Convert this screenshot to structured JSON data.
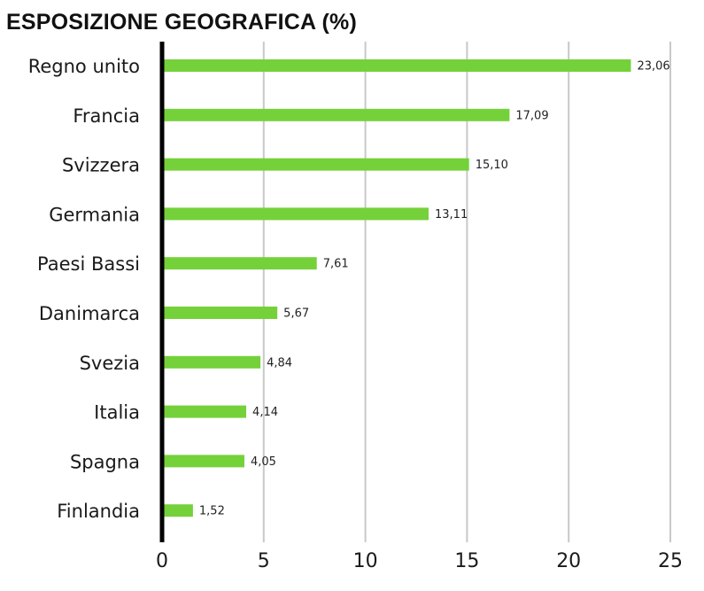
{
  "chart_data": {
    "type": "bar",
    "orientation": "horizontal",
    "title": "ESPOSIZIONE GEOGRAFICA (%)",
    "categories": [
      "Regno unito",
      "Francia",
      "Svizzera",
      "Germania",
      "Paesi Bassi",
      "Danimarca",
      "Svezia",
      "Italia",
      "Spagna",
      "Finlandia"
    ],
    "values": [
      23.06,
      17.09,
      15.1,
      13.11,
      7.61,
      5.67,
      4.84,
      4.14,
      4.05,
      1.52
    ],
    "value_labels": [
      "23,06",
      "17,09",
      "15,10",
      "13,11",
      "7,61",
      "5,67",
      "4,84",
      "4,14",
      "4,05",
      "1,52"
    ],
    "x_ticks": [
      0,
      5,
      10,
      15,
      20,
      25
    ],
    "x_tick_labels": [
      "0",
      "5",
      "10",
      "15",
      "20",
      "25"
    ],
    "xlim": [
      0,
      25
    ],
    "grid": "vertical",
    "bar_color": "#75d13a",
    "grid_color": "#c8c8c8",
    "axis_color": "#000000"
  }
}
